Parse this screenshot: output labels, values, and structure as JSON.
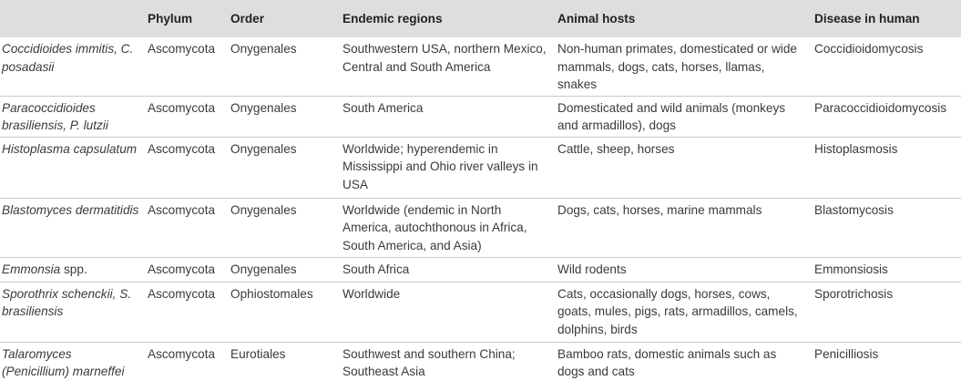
{
  "headers": [
    "",
    "Phylum",
    "Order",
    "Endemic regions",
    "Animal hosts",
    "Disease in human"
  ],
  "rows": [
    {
      "species": "Coccidioides immitis, C. posadasii",
      "species_suffix": "",
      "phylum": "Ascomycota",
      "order": "Onygenales",
      "regions": "Southwestern USA, northern Mexico, Central and South America",
      "hosts": "Non-human primates, domesticated or wide mammals, dogs, cats, horses, llamas, snakes",
      "disease": "Coccidioidomycosis"
    },
    {
      "species": "Paracoccidioides brasiliensis, P. lutzii",
      "species_suffix": "",
      "phylum": "Ascomycota",
      "order": "Onygenales",
      "regions": "South America",
      "hosts": "Domesticated and wild animals (monkeys and armadillos), dogs",
      "disease": "Paracoccidioidomycosis"
    },
    {
      "species": "Histoplasma capsulatum",
      "species_suffix": "",
      "phylum": "Ascomycota",
      "order": "Onygenales",
      "regions": "Worldwide; hyperendemic in Mississippi and Ohio river valleys in USA",
      "hosts": "Cattle, sheep, horses",
      "disease": "Histoplasmosis"
    },
    {
      "species": "Blastomyces dermatitidis",
      "species_suffix": "",
      "phylum": "Ascomycota",
      "order": "Onygenales",
      "regions": "Worldwide (endemic in North America, autochthonous in Africa, South America, and Asia)",
      "hosts": "Dogs, cats, horses, marine mammals",
      "disease": "Blastomycosis"
    },
    {
      "species": "Emmonsia",
      "species_suffix": " spp.",
      "phylum": "Ascomycota",
      "order": "Onygenales",
      "regions": "South Africa",
      "hosts": "Wild rodents",
      "disease": "Emmonsiosis"
    },
    {
      "species": "Sporothrix schenckii, S. brasiliensis",
      "species_suffix": "",
      "phylum": "Ascomycota",
      "order": "Ophiostomales",
      "regions": "Worldwide",
      "hosts": "Cats, occasionally dogs, horses, cows, goats, mules, pigs, rats, armadillos, camels, dolphins, birds",
      "disease": "Sporotrichosis"
    },
    {
      "species": "Talaromyces (Penicillium) marneffei",
      "species_suffix": "",
      "phylum": "Ascomycota",
      "order": "Eurotiales",
      "regions": "Southwest and southern China; Southeast Asia",
      "hosts": "Bamboo rats, domestic animals such as dogs and cats",
      "disease": "Penicilliosis"
    }
  ]
}
